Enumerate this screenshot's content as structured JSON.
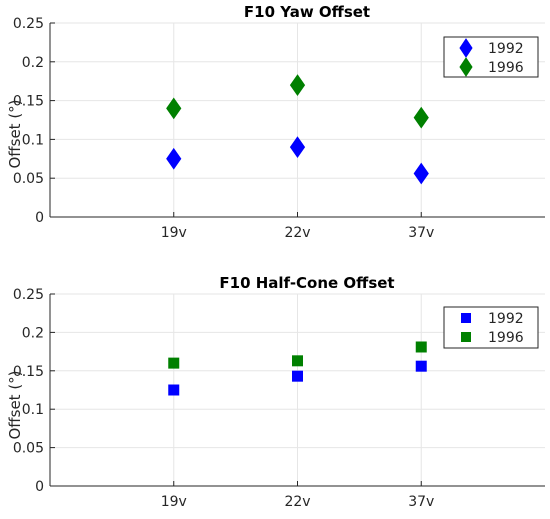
{
  "chart_data": [
    {
      "type": "scatter",
      "title": "F10 Yaw Offset",
      "xlabel": "",
      "ylabel": "Offset (°)",
      "categories": [
        "19v",
        "22v",
        "37v"
      ],
      "ylim": [
        0,
        0.25
      ],
      "yticks": [
        "0",
        "0.05",
        "0.1",
        "0.15",
        "0.2",
        "0.25"
      ],
      "grid": true,
      "legend_position": "top-right",
      "marker": "diamond",
      "series": [
        {
          "name": "1992",
          "color": "#0000ff",
          "values": [
            0.075,
            0.09,
            0.056
          ]
        },
        {
          "name": "1996",
          "color": "#008000",
          "values": [
            0.14,
            0.17,
            0.128
          ]
        }
      ]
    },
    {
      "type": "scatter",
      "title": "F10 Half-Cone Offset",
      "xlabel": "",
      "ylabel": "Offset (°)",
      "categories": [
        "19v",
        "22v",
        "37v"
      ],
      "ylim": [
        0,
        0.25
      ],
      "yticks": [
        "0",
        "0.05",
        "0.1",
        "0.15",
        "0.2",
        "0.25"
      ],
      "grid": true,
      "legend_position": "top-right",
      "marker": "square",
      "series": [
        {
          "name": "1992",
          "color": "#0000ff",
          "values": [
            0.125,
            0.143,
            0.156
          ]
        },
        {
          "name": "1996",
          "color": "#008000",
          "values": [
            0.16,
            0.163,
            0.181
          ]
        }
      ]
    }
  ]
}
